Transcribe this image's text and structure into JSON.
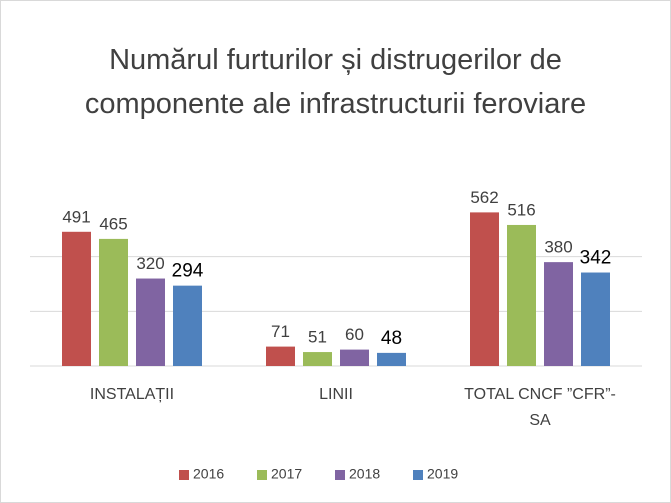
{
  "chart_data": {
    "type": "bar",
    "title": "Numărul furturilor și distrugerilor de componente ale infrastructurii feroviare",
    "categories": [
      "INSTALAȚII",
      "LINII",
      "TOTAL CNCF ”CFR”-SA"
    ],
    "series": [
      {
        "name": "2016",
        "color": "#c0504d",
        "values": [
          491,
          71,
          562
        ]
      },
      {
        "name": "2017",
        "color": "#9bbb59",
        "values": [
          465,
          51,
          516
        ]
      },
      {
        "name": "2018",
        "color": "#8064a2",
        "values": [
          320,
          60,
          380
        ]
      },
      {
        "name": "2019",
        "color": "#4f81bd",
        "values": [
          294,
          48,
          342
        ]
      }
    ],
    "ylim": [
      0,
      600
    ],
    "yticks": [
      0,
      200,
      400
    ],
    "grid": true,
    "legend": "bottom"
  }
}
